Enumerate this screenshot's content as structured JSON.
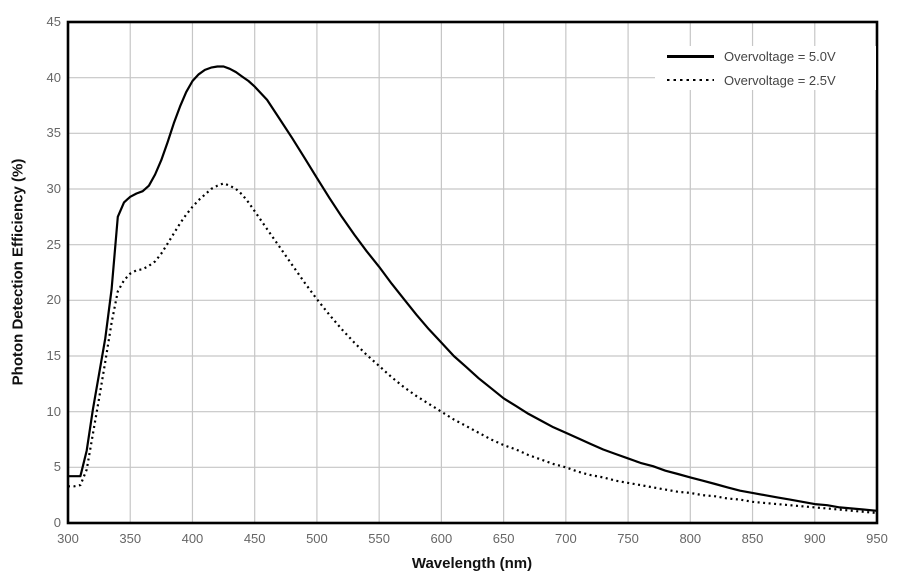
{
  "colors": {
    "background": "#ffffff",
    "frame": "#000000",
    "grid": "#c6c6c6",
    "tick_label": "#666666",
    "curve": "#000000"
  },
  "legend": {
    "items": [
      {
        "label": "Overvoltage = 5.0V",
        "style": "solid"
      },
      {
        "label": "Overvoltage = 2.5V",
        "style": "dotted"
      }
    ]
  },
  "chart_data": {
    "type": "line",
    "title": "",
    "xlabel": "Wavelength (nm)",
    "ylabel": "Photon Detection Efficiency (%)",
    "xlim": [
      300,
      950
    ],
    "ylim": [
      0,
      45
    ],
    "x_ticks": [
      300,
      350,
      400,
      450,
      500,
      550,
      600,
      650,
      700,
      750,
      800,
      850,
      900,
      950
    ],
    "y_ticks": [
      0,
      5,
      10,
      15,
      20,
      25,
      30,
      35,
      40,
      45
    ],
    "grid": true,
    "legend_position": "top-right-inside",
    "series": [
      {
        "name": "Overvoltage = 5.0V",
        "line_style": "solid",
        "color": "#000000",
        "x": [
          300,
          305,
          310,
          315,
          320,
          325,
          330,
          335,
          340,
          345,
          350,
          355,
          360,
          365,
          370,
          375,
          380,
          385,
          390,
          395,
          400,
          405,
          410,
          415,
          420,
          425,
          430,
          435,
          440,
          445,
          450,
          460,
          470,
          480,
          490,
          500,
          510,
          520,
          530,
          540,
          550,
          560,
          570,
          580,
          590,
          600,
          610,
          620,
          630,
          640,
          650,
          660,
          670,
          680,
          690,
          700,
          710,
          720,
          730,
          740,
          750,
          760,
          770,
          780,
          790,
          800,
          810,
          820,
          830,
          840,
          850,
          860,
          870,
          880,
          890,
          900,
          910,
          920,
          930,
          940,
          950
        ],
        "y": [
          4.2,
          4.2,
          4.2,
          6.5,
          10.2,
          13.4,
          16.6,
          21.0,
          27.5,
          28.8,
          29.3,
          29.6,
          29.8,
          30.3,
          31.3,
          32.6,
          34.2,
          35.9,
          37.4,
          38.7,
          39.7,
          40.3,
          40.7,
          40.9,
          41.0,
          41.0,
          40.8,
          40.5,
          40.1,
          39.7,
          39.2,
          38.0,
          36.3,
          34.6,
          32.8,
          31.0,
          29.2,
          27.5,
          25.9,
          24.4,
          23.0,
          21.5,
          20.1,
          18.7,
          17.4,
          16.2,
          15.0,
          14.0,
          13.0,
          12.1,
          11.2,
          10.5,
          9.8,
          9.2,
          8.6,
          8.1,
          7.6,
          7.1,
          6.6,
          6.2,
          5.8,
          5.4,
          5.1,
          4.7,
          4.4,
          4.1,
          3.8,
          3.5,
          3.2,
          2.9,
          2.7,
          2.5,
          2.3,
          2.1,
          1.9,
          1.7,
          1.6,
          1.4,
          1.3,
          1.2,
          1.1
        ]
      },
      {
        "name": "Overvoltage = 2.5V",
        "line_style": "dotted",
        "color": "#000000",
        "x": [
          300,
          305,
          310,
          315,
          320,
          325,
          330,
          335,
          340,
          345,
          350,
          355,
          360,
          365,
          370,
          375,
          380,
          385,
          390,
          395,
          400,
          405,
          410,
          415,
          420,
          425,
          430,
          435,
          440,
          445,
          450,
          460,
          470,
          480,
          490,
          500,
          510,
          520,
          530,
          540,
          550,
          560,
          570,
          580,
          590,
          600,
          610,
          620,
          630,
          640,
          650,
          660,
          670,
          680,
          690,
          700,
          710,
          720,
          730,
          740,
          750,
          760,
          770,
          780,
          790,
          800,
          810,
          820,
          830,
          840,
          850,
          860,
          870,
          880,
          890,
          900,
          910,
          920,
          930,
          940,
          950
        ],
        "y": [
          3.3,
          3.3,
          3.4,
          4.8,
          8.0,
          11.2,
          14.5,
          18.0,
          20.8,
          21.8,
          22.4,
          22.7,
          22.8,
          23.1,
          23.5,
          24.2,
          25.1,
          26.0,
          26.9,
          27.7,
          28.4,
          29.0,
          29.5,
          30.0,
          30.3,
          30.5,
          30.3,
          30.0,
          29.5,
          28.8,
          28.0,
          26.4,
          24.8,
          23.2,
          21.6,
          20.1,
          18.7,
          17.4,
          16.2,
          15.1,
          14.1,
          13.1,
          12.2,
          11.4,
          10.7,
          10.0,
          9.3,
          8.7,
          8.1,
          7.5,
          7.0,
          6.6,
          6.1,
          5.7,
          5.3,
          5.0,
          4.6,
          4.3,
          4.1,
          3.8,
          3.6,
          3.4,
          3.2,
          3.0,
          2.8,
          2.7,
          2.5,
          2.4,
          2.2,
          2.1,
          1.9,
          1.8,
          1.7,
          1.6,
          1.5,
          1.4,
          1.3,
          1.2,
          1.1,
          1.0,
          0.9
        ]
      }
    ]
  }
}
